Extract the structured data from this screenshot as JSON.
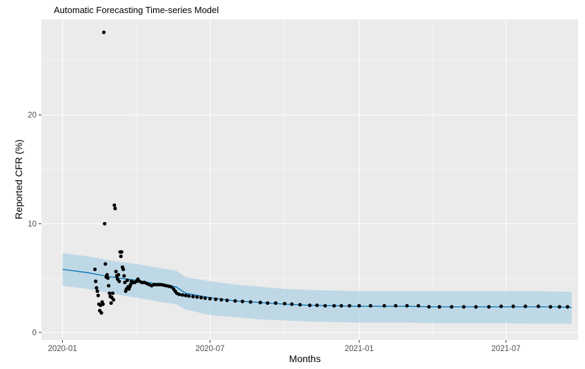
{
  "chart_data": {
    "type": "scatter",
    "title": "Automatic Forecasting Time-series Model",
    "xlabel": "Months",
    "ylabel": "Reported CFR (%)",
    "x_ticks": [
      "2020-01",
      "2020-07",
      "2021-01",
      "2021-07"
    ],
    "y_ticks": [
      "0",
      "10",
      "20"
    ],
    "xlim": [
      "2019-12-06",
      "2021-09-28"
    ],
    "ylim": [
      -0.7,
      28.8
    ],
    "grid": true,
    "legend": "none",
    "background": "#ebebeb",
    "grid_color": "#ffffff",
    "colors": {
      "points": "#000000",
      "forecast_line": "#0072b2",
      "interval_band": "#a6cee3"
    },
    "forecast": {
      "x": [
        "2020-01-01",
        "2020-02-01",
        "2020-03-01",
        "2020-04-01",
        "2020-05-01",
        "2020-05-20",
        "2020-06-01",
        "2020-07-01",
        "2020-08-01",
        "2020-09-01",
        "2020-10-01",
        "2020-11-01",
        "2020-12-01",
        "2021-01-01",
        "2021-02-01",
        "2021-03-01",
        "2021-04-01",
        "2021-05-01",
        "2021-06-01",
        "2021-07-01",
        "2021-08-01",
        "2021-09-01",
        "2021-09-20"
      ],
      "yhat": [
        5.8,
        5.5,
        5.1,
        4.8,
        4.4,
        4.2,
        3.6,
        3.2,
        2.9,
        2.75,
        2.6,
        2.5,
        2.45,
        2.4,
        2.4,
        2.4,
        2.35,
        2.35,
        2.35,
        2.35,
        2.35,
        2.35,
        2.3
      ],
      "lower": [
        4.3,
        4.0,
        3.6,
        3.2,
        2.8,
        2.6,
        2.1,
        1.6,
        1.4,
        1.2,
        1.1,
        1.0,
        0.95,
        0.9,
        0.9,
        0.9,
        0.85,
        0.85,
        0.85,
        0.85,
        0.8,
        0.8,
        0.8
      ],
      "upper": [
        7.3,
        7.0,
        6.6,
        6.3,
        5.9,
        5.7,
        5.1,
        4.7,
        4.4,
        4.2,
        4.0,
        3.9,
        3.85,
        3.8,
        3.8,
        3.8,
        3.8,
        3.8,
        3.8,
        3.8,
        3.8,
        3.75,
        3.75
      ]
    },
    "points": [
      {
        "x": "2020-02-10",
        "y": 5.8
      },
      {
        "x": "2020-02-11",
        "y": 4.7
      },
      {
        "x": "2020-02-12",
        "y": 4.1
      },
      {
        "x": "2020-02-13",
        "y": 3.8
      },
      {
        "x": "2020-02-14",
        "y": 3.4
      },
      {
        "x": "2020-02-15",
        "y": 2.6
      },
      {
        "x": "2020-02-16",
        "y": 2.0
      },
      {
        "x": "2020-02-17",
        "y": 2.5
      },
      {
        "x": "2020-02-18",
        "y": 1.8
      },
      {
        "x": "2020-02-19",
        "y": 2.8
      },
      {
        "x": "2020-02-20",
        "y": 2.6
      },
      {
        "x": "2020-02-21",
        "y": 27.6
      },
      {
        "x": "2020-02-22",
        "y": 10.0
      },
      {
        "x": "2020-02-23",
        "y": 6.3
      },
      {
        "x": "2020-02-24",
        "y": 5.1
      },
      {
        "x": "2020-02-25",
        "y": 5.3
      },
      {
        "x": "2020-02-26",
        "y": 5.0
      },
      {
        "x": "2020-02-27",
        "y": 4.3
      },
      {
        "x": "2020-02-28",
        "y": 3.6
      },
      {
        "x": "2020-02-29",
        "y": 3.3
      },
      {
        "x": "2020-03-01",
        "y": 2.7
      },
      {
        "x": "2020-03-02",
        "y": 3.2
      },
      {
        "x": "2020-03-03",
        "y": 3.6
      },
      {
        "x": "2020-03-04",
        "y": 3.0
      },
      {
        "x": "2020-03-05",
        "y": 11.7
      },
      {
        "x": "2020-03-06",
        "y": 11.4
      },
      {
        "x": "2020-03-07",
        "y": 5.6
      },
      {
        "x": "2020-03-08",
        "y": 5.2
      },
      {
        "x": "2020-03-09",
        "y": 4.9
      },
      {
        "x": "2020-03-10",
        "y": 5.3
      },
      {
        "x": "2020-03-11",
        "y": 4.7
      },
      {
        "x": "2020-03-12",
        "y": 7.4
      },
      {
        "x": "2020-03-13",
        "y": 7.0
      },
      {
        "x": "2020-03-14",
        "y": 7.4
      },
      {
        "x": "2020-03-15",
        "y": 6.0
      },
      {
        "x": "2020-03-16",
        "y": 5.8
      },
      {
        "x": "2020-03-17",
        "y": 5.2
      },
      {
        "x": "2020-03-18",
        "y": 4.6
      },
      {
        "x": "2020-03-19",
        "y": 3.8
      },
      {
        "x": "2020-03-20",
        "y": 4.0
      },
      {
        "x": "2020-03-21",
        "y": 4.8
      },
      {
        "x": "2020-03-22",
        "y": 4.2
      },
      {
        "x": "2020-03-23",
        "y": 4.0
      },
      {
        "x": "2020-03-24",
        "y": 4.2
      },
      {
        "x": "2020-03-25",
        "y": 4.4
      },
      {
        "x": "2020-03-26",
        "y": 4.7
      },
      {
        "x": "2020-03-28",
        "y": 4.6
      },
      {
        "x": "2020-03-30",
        "y": 4.6
      },
      {
        "x": "2020-04-01",
        "y": 4.7
      },
      {
        "x": "2020-04-03",
        "y": 4.9
      },
      {
        "x": "2020-04-05",
        "y": 4.7
      },
      {
        "x": "2020-04-08",
        "y": 4.6
      },
      {
        "x": "2020-04-11",
        "y": 4.6
      },
      {
        "x": "2020-04-14",
        "y": 4.5
      },
      {
        "x": "2020-04-17",
        "y": 4.4
      },
      {
        "x": "2020-04-20",
        "y": 4.3
      },
      {
        "x": "2020-04-23",
        "y": 4.4
      },
      {
        "x": "2020-04-26",
        "y": 4.4
      },
      {
        "x": "2020-04-29",
        "y": 4.4
      },
      {
        "x": "2020-05-02",
        "y": 4.4
      },
      {
        "x": "2020-05-05",
        "y": 4.35
      },
      {
        "x": "2020-05-08",
        "y": 4.3
      },
      {
        "x": "2020-05-11",
        "y": 4.25
      },
      {
        "x": "2020-05-14",
        "y": 4.2
      },
      {
        "x": "2020-05-17",
        "y": 4.0
      },
      {
        "x": "2020-05-19",
        "y": 3.8
      },
      {
        "x": "2020-05-21",
        "y": 3.6
      },
      {
        "x": "2020-05-24",
        "y": 3.5
      },
      {
        "x": "2020-05-28",
        "y": 3.45
      },
      {
        "x": "2020-06-01",
        "y": 3.4
      },
      {
        "x": "2020-06-05",
        "y": 3.35
      },
      {
        "x": "2020-06-10",
        "y": 3.3
      },
      {
        "x": "2020-06-15",
        "y": 3.25
      },
      {
        "x": "2020-06-20",
        "y": 3.2
      },
      {
        "x": "2020-06-25",
        "y": 3.15
      },
      {
        "x": "2020-07-01",
        "y": 3.1
      },
      {
        "x": "2020-07-08",
        "y": 3.05
      },
      {
        "x": "2020-07-15",
        "y": 3.0
      },
      {
        "x": "2020-07-22",
        "y": 2.95
      },
      {
        "x": "2020-08-01",
        "y": 2.9
      },
      {
        "x": "2020-08-10",
        "y": 2.85
      },
      {
        "x": "2020-08-20",
        "y": 2.8
      },
      {
        "x": "2020-09-01",
        "y": 2.75
      },
      {
        "x": "2020-09-10",
        "y": 2.7
      },
      {
        "x": "2020-09-20",
        "y": 2.7
      },
      {
        "x": "2020-10-01",
        "y": 2.65
      },
      {
        "x": "2020-10-10",
        "y": 2.6
      },
      {
        "x": "2020-10-20",
        "y": 2.55
      },
      {
        "x": "2020-11-01",
        "y": 2.5
      },
      {
        "x": "2020-11-10",
        "y": 2.5
      },
      {
        "x": "2020-11-20",
        "y": 2.45
      },
      {
        "x": "2020-12-01",
        "y": 2.45
      },
      {
        "x": "2020-12-10",
        "y": 2.45
      },
      {
        "x": "2020-12-20",
        "y": 2.45
      },
      {
        "x": "2021-01-01",
        "y": 2.45
      },
      {
        "x": "2021-01-15",
        "y": 2.45
      },
      {
        "x": "2021-02-01",
        "y": 2.45
      },
      {
        "x": "2021-02-15",
        "y": 2.45
      },
      {
        "x": "2021-03-01",
        "y": 2.45
      },
      {
        "x": "2021-03-15",
        "y": 2.45
      },
      {
        "x": "2021-03-28",
        "y": 2.35
      },
      {
        "x": "2021-04-10",
        "y": 2.35
      },
      {
        "x": "2021-04-25",
        "y": 2.35
      },
      {
        "x": "2021-05-10",
        "y": 2.35
      },
      {
        "x": "2021-05-25",
        "y": 2.35
      },
      {
        "x": "2021-06-10",
        "y": 2.35
      },
      {
        "x": "2021-06-25",
        "y": 2.4
      },
      {
        "x": "2021-07-10",
        "y": 2.4
      },
      {
        "x": "2021-07-25",
        "y": 2.4
      },
      {
        "x": "2021-08-10",
        "y": 2.4
      },
      {
        "x": "2021-08-25",
        "y": 2.35
      },
      {
        "x": "2021-09-05",
        "y": 2.35
      },
      {
        "x": "2021-09-15",
        "y": 2.35
      }
    ]
  }
}
